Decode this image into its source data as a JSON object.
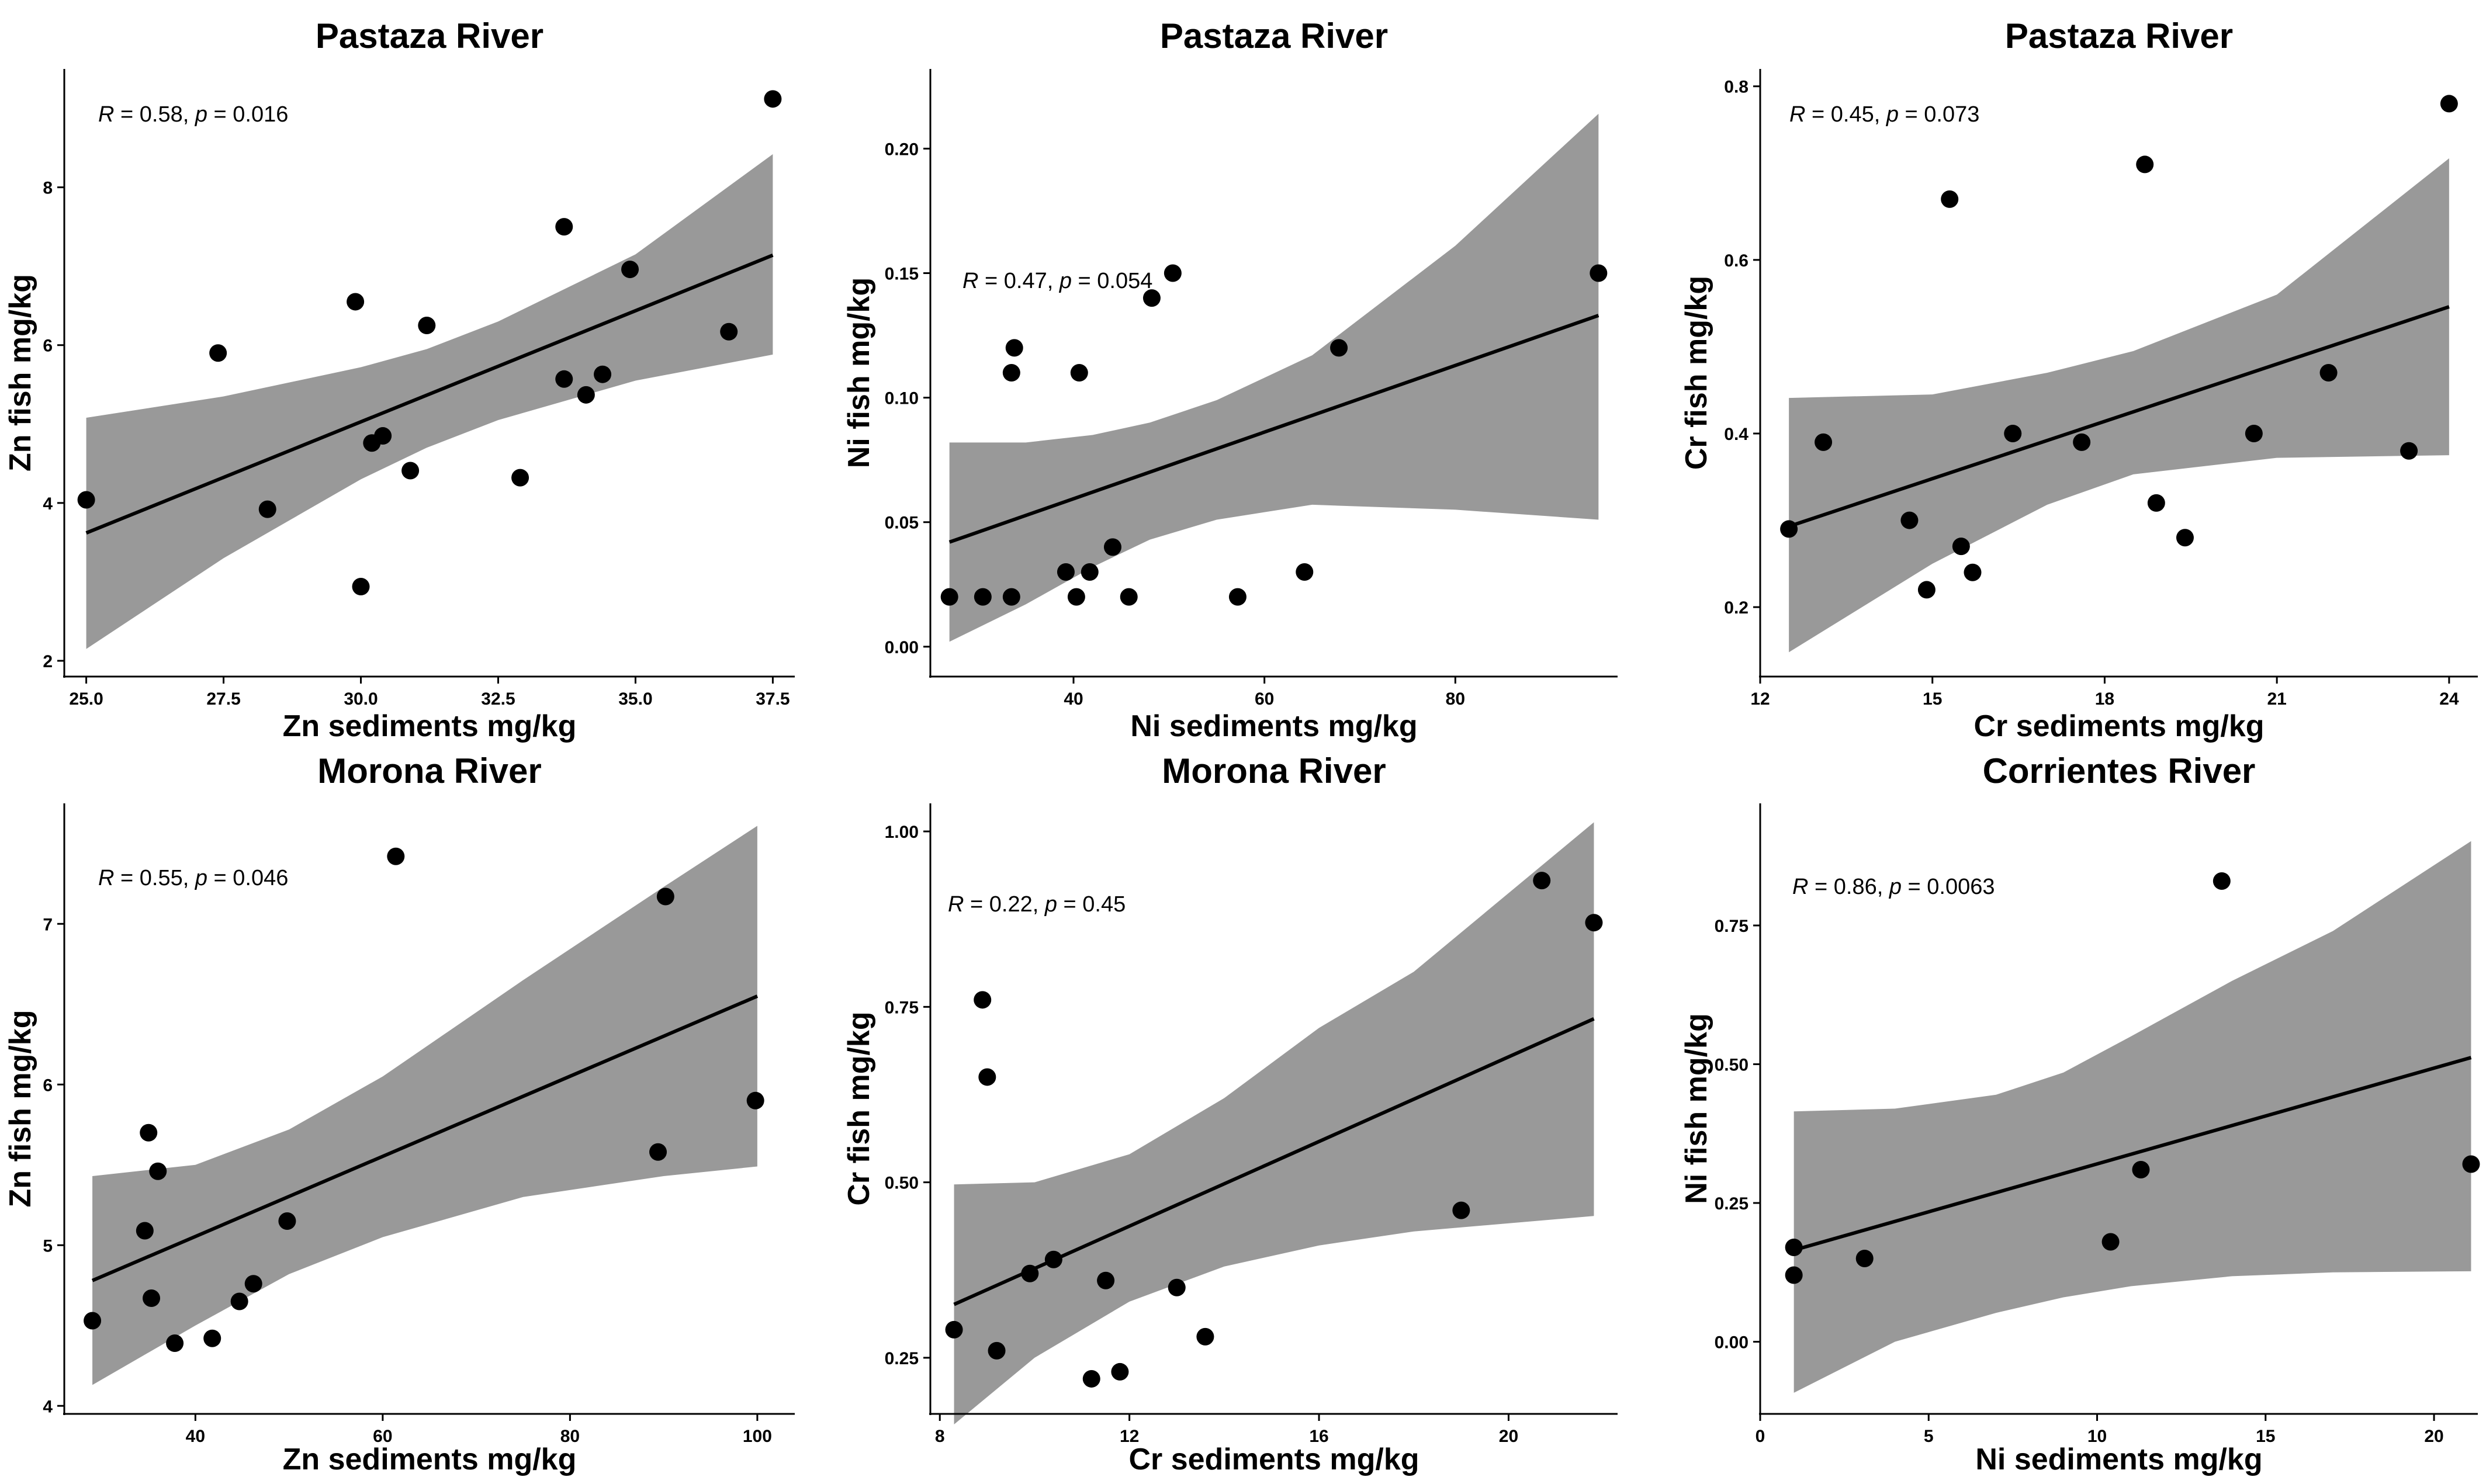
{
  "chart_data": [
    {
      "type": "scatter",
      "title": "Pastaza River",
      "xlabel": "Zn sediments mg/kg",
      "ylabel": "Zn fish mg/kg",
      "xlim": [
        24.6,
        37.9
      ],
      "ylim": [
        1.8,
        9.5
      ],
      "xticks": [
        25.0,
        27.5,
        30.0,
        32.5,
        35.0,
        37.5
      ],
      "xtick_labels": [
        "25.0",
        "27.5",
        "30.0",
        "32.5",
        "35.0",
        "37.5"
      ],
      "yticks": [
        2,
        4,
        6,
        8
      ],
      "ytick_labels": [
        "2",
        "4",
        "6",
        "8"
      ],
      "annotation": {
        "R": "0.58",
        "p": "0.016"
      },
      "fit": {
        "x": [
          25.0,
          37.5
        ],
        "y": [
          3.62,
          7.14
        ]
      },
      "ci": {
        "x": [
          25.0,
          27.5,
          30.0,
          31.2,
          32.5,
          35.0,
          37.5
        ],
        "lower": [
          2.15,
          3.3,
          4.3,
          4.7,
          5.05,
          5.55,
          5.88
        ],
        "upper": [
          5.08,
          5.35,
          5.72,
          5.95,
          6.3,
          7.15,
          8.42
        ]
      },
      "points": [
        {
          "x": 25.0,
          "y": 4.04
        },
        {
          "x": 27.4,
          "y": 5.9
        },
        {
          "x": 28.3,
          "y": 3.92
        },
        {
          "x": 29.9,
          "y": 6.55
        },
        {
          "x": 30.0,
          "y": 2.94
        },
        {
          "x": 30.2,
          "y": 4.76
        },
        {
          "x": 30.4,
          "y": 4.85
        },
        {
          "x": 30.9,
          "y": 4.41
        },
        {
          "x": 31.2,
          "y": 6.25
        },
        {
          "x": 32.9,
          "y": 4.32
        },
        {
          "x": 33.7,
          "y": 7.5
        },
        {
          "x": 33.7,
          "y": 5.57
        },
        {
          "x": 34.1,
          "y": 5.37
        },
        {
          "x": 34.4,
          "y": 5.63
        },
        {
          "x": 34.9,
          "y": 6.96
        },
        {
          "x": 36.7,
          "y": 6.17
        },
        {
          "x": 37.5,
          "y": 9.12
        }
      ]
    },
    {
      "type": "scatter",
      "title": "Pastaza River",
      "xlabel": "Ni sediments mg/kg",
      "ylabel": "Ni fish mg/kg",
      "xlim": [
        25,
        97
      ],
      "ylim": [
        -0.012,
        0.232
      ],
      "xticks": [
        40,
        60,
        80
      ],
      "xtick_labels": [
        "40",
        "60",
        "80"
      ],
      "yticks": [
        0.0,
        0.05,
        0.1,
        0.15,
        0.2
      ],
      "ytick_labels": [
        "0.00",
        "0.05",
        "0.10",
        "0.15",
        "0.20"
      ],
      "annotation": {
        "R": "0.47",
        "p": "0.054"
      },
      "fit": {
        "x": [
          27,
          95
        ],
        "y": [
          0.042,
          0.133
        ]
      },
      "ci": {
        "x": [
          27,
          35,
          42,
          48,
          55,
          65,
          80,
          95
        ],
        "lower": [
          0.002,
          0.017,
          0.032,
          0.043,
          0.051,
          0.057,
          0.055,
          0.051
        ],
        "upper": [
          0.082,
          0.082,
          0.085,
          0.09,
          0.099,
          0.117,
          0.161,
          0.214
        ]
      },
      "points": [
        {
          "x": 27.0,
          "y": 0.02
        },
        {
          "x": 30.5,
          "y": 0.02
        },
        {
          "x": 33.5,
          "y": 0.02
        },
        {
          "x": 33.5,
          "y": 0.11
        },
        {
          "x": 33.8,
          "y": 0.12
        },
        {
          "x": 39.2,
          "y": 0.03
        },
        {
          "x": 40.3,
          "y": 0.02
        },
        {
          "x": 40.6,
          "y": 0.11
        },
        {
          "x": 41.7,
          "y": 0.03
        },
        {
          "x": 44.1,
          "y": 0.04
        },
        {
          "x": 45.8,
          "y": 0.02
        },
        {
          "x": 48.2,
          "y": 0.14
        },
        {
          "x": 50.4,
          "y": 0.15
        },
        {
          "x": 57.2,
          "y": 0.02
        },
        {
          "x": 64.2,
          "y": 0.03
        },
        {
          "x": 67.8,
          "y": 0.12
        },
        {
          "x": 95.0,
          "y": 0.15
        }
      ]
    },
    {
      "type": "scatter",
      "title": "Pastaza River",
      "xlabel": "Cr sediments mg/kg",
      "ylabel": "Cr fish mg/kg",
      "xlim": [
        12.0,
        24.5
      ],
      "ylim": [
        0.12,
        0.82
      ],
      "xticks": [
        12,
        15,
        18,
        21,
        24
      ],
      "xtick_labels": [
        "12",
        "15",
        "18",
        "21",
        "24"
      ],
      "yticks": [
        0.2,
        0.4,
        0.6,
        0.8
      ],
      "ytick_labels": [
        "0.2",
        "0.4",
        "0.6",
        "0.8"
      ],
      "annotation": {
        "R": "0.45",
        "p": "0.073"
      },
      "fit": {
        "x": [
          12.5,
          24.0
        ],
        "y": [
          0.293,
          0.546
        ]
      },
      "ci": {
        "x": [
          12.5,
          15.0,
          17.0,
          18.5,
          21.0,
          24.0
        ],
        "lower": [
          0.148,
          0.25,
          0.318,
          0.353,
          0.372,
          0.375
        ],
        "upper": [
          0.441,
          0.445,
          0.47,
          0.495,
          0.56,
          0.717
        ]
      },
      "points": [
        {
          "x": 12.5,
          "y": 0.29
        },
        {
          "x": 13.1,
          "y": 0.39
        },
        {
          "x": 14.6,
          "y": 0.3
        },
        {
          "x": 14.9,
          "y": 0.22
        },
        {
          "x": 15.3,
          "y": 0.67
        },
        {
          "x": 15.5,
          "y": 0.27
        },
        {
          "x": 15.7,
          "y": 0.24
        },
        {
          "x": 16.4,
          "y": 0.4
        },
        {
          "x": 17.6,
          "y": 0.39
        },
        {
          "x": 18.7,
          "y": 0.71
        },
        {
          "x": 18.9,
          "y": 0.32
        },
        {
          "x": 19.4,
          "y": 0.28
        },
        {
          "x": 20.6,
          "y": 0.4
        },
        {
          "x": 21.9,
          "y": 0.47
        },
        {
          "x": 23.3,
          "y": 0.38
        },
        {
          "x": 24.0,
          "y": 0.78
        }
      ]
    },
    {
      "type": "scatter",
      "title": "Morona River",
      "xlabel": "Zn sediments mg/kg",
      "ylabel": "Zn fish mg/kg",
      "xlim": [
        26,
        104
      ],
      "ylim": [
        3.95,
        7.75
      ],
      "xticks": [
        40,
        60,
        80,
        100
      ],
      "xtick_labels": [
        "40",
        "60",
        "80",
        "100"
      ],
      "yticks": [
        4,
        5,
        6,
        7
      ],
      "ytick_labels": [
        "4",
        "5",
        "6",
        "7"
      ],
      "annotation": {
        "R": "0.55",
        "p": "0.046"
      },
      "fit": {
        "x": [
          29.0,
          100.0
        ],
        "y": [
          4.78,
          6.55
        ]
      },
      "ci": {
        "x": [
          29.0,
          40.0,
          50.0,
          60.0,
          75.0,
          90.0,
          100.0
        ],
        "lower": [
          4.13,
          4.5,
          4.82,
          5.05,
          5.3,
          5.43,
          5.49
        ],
        "upper": [
          5.43,
          5.5,
          5.72,
          6.05,
          6.65,
          7.23,
          7.61
        ]
      },
      "points": [
        {
          "x": 29.0,
          "y": 4.53
        },
        {
          "x": 34.6,
          "y": 5.09
        },
        {
          "x": 35.0,
          "y": 5.7
        },
        {
          "x": 35.3,
          "y": 4.67
        },
        {
          "x": 36.0,
          "y": 5.46
        },
        {
          "x": 37.8,
          "y": 4.39
        },
        {
          "x": 41.8,
          "y": 4.42
        },
        {
          "x": 44.7,
          "y": 4.65
        },
        {
          "x": 46.2,
          "y": 4.76
        },
        {
          "x": 49.8,
          "y": 5.15
        },
        {
          "x": 61.4,
          "y": 7.42
        },
        {
          "x": 89.4,
          "y": 5.58
        },
        {
          "x": 90.2,
          "y": 7.17
        },
        {
          "x": 99.8,
          "y": 5.9
        }
      ]
    },
    {
      "type": "scatter",
      "title": "Morona River",
      "xlabel": "Cr sediments mg/kg",
      "ylabel": "Cr fish mg/kg",
      "xlim": [
        7.8,
        22.3
      ],
      "ylim": [
        0.17,
        1.04
      ],
      "xticks": [
        8,
        12,
        16,
        20
      ],
      "xtick_labels": [
        "8",
        "12",
        "16",
        "20"
      ],
      "yticks": [
        0.25,
        0.5,
        0.75,
        1.0
      ],
      "ytick_labels": [
        "0.25",
        "0.50",
        "0.75",
        "1.00"
      ],
      "annotation": {
        "R": "0.22",
        "p": "0.45"
      },
      "fit": {
        "x": [
          8.3,
          21.8
        ],
        "y": [
          0.326,
          0.733
        ]
      },
      "ci": {
        "x": [
          8.3,
          10.0,
          12.0,
          14.0,
          16.0,
          18.0,
          21.8
        ],
        "lower": [
          0.155,
          0.25,
          0.33,
          0.38,
          0.41,
          0.43,
          0.452
        ],
        "upper": [
          0.497,
          0.5,
          0.54,
          0.62,
          0.72,
          0.8,
          1.013
        ]
      },
      "points": [
        {
          "x": 8.3,
          "y": 0.29
        },
        {
          "x": 8.9,
          "y": 0.76
        },
        {
          "x": 9.0,
          "y": 0.65
        },
        {
          "x": 9.2,
          "y": 0.26
        },
        {
          "x": 9.9,
          "y": 0.37
        },
        {
          "x": 10.4,
          "y": 0.39
        },
        {
          "x": 11.2,
          "y": 0.22
        },
        {
          "x": 11.5,
          "y": 0.36
        },
        {
          "x": 11.8,
          "y": 0.23
        },
        {
          "x": 13.0,
          "y": 0.35
        },
        {
          "x": 13.6,
          "y": 0.28
        },
        {
          "x": 19.0,
          "y": 0.46
        },
        {
          "x": 20.7,
          "y": 0.93
        },
        {
          "x": 21.8,
          "y": 0.87
        }
      ]
    },
    {
      "type": "scatter",
      "title": "Corrientes River",
      "xlabel": "Ni sediments mg/kg",
      "ylabel": "Ni fish mg/kg",
      "xlim": [
        0,
        21.3
      ],
      "ylim": [
        -0.13,
        0.97
      ],
      "xticks": [
        0,
        5,
        10,
        15,
        20
      ],
      "xtick_labels": [
        "0",
        "5",
        "10",
        "15",
        "20"
      ],
      "yticks": [
        0.0,
        0.25,
        0.5,
        0.75
      ],
      "ytick_labels": [
        "0.00",
        "0.25",
        "0.50",
        "0.75"
      ],
      "annotation": {
        "R": "0.86",
        "p": "0.0063"
      },
      "fit": {
        "x": [
          1.0,
          21.1
        ],
        "y": [
          0.165,
          0.512
        ]
      },
      "ci": {
        "x": [
          1.0,
          4.0,
          7.0,
          9.0,
          11.0,
          14.0,
          17.0,
          21.1
        ],
        "lower": [
          -0.092,
          0.0,
          0.052,
          0.08,
          0.1,
          0.118,
          0.125,
          0.127
        ],
        "upper": [
          0.415,
          0.42,
          0.445,
          0.485,
          0.55,
          0.65,
          0.74,
          0.902
        ]
      },
      "points": [
        {
          "x": 1.0,
          "y": 0.17
        },
        {
          "x": 1.0,
          "y": 0.12
        },
        {
          "x": 3.1,
          "y": 0.15
        },
        {
          "x": 10.4,
          "y": 0.18
        },
        {
          "x": 11.3,
          "y": 0.31
        },
        {
          "x": 13.7,
          "y": 0.83
        },
        {
          "x": 21.1,
          "y": 0.32
        }
      ]
    }
  ]
}
